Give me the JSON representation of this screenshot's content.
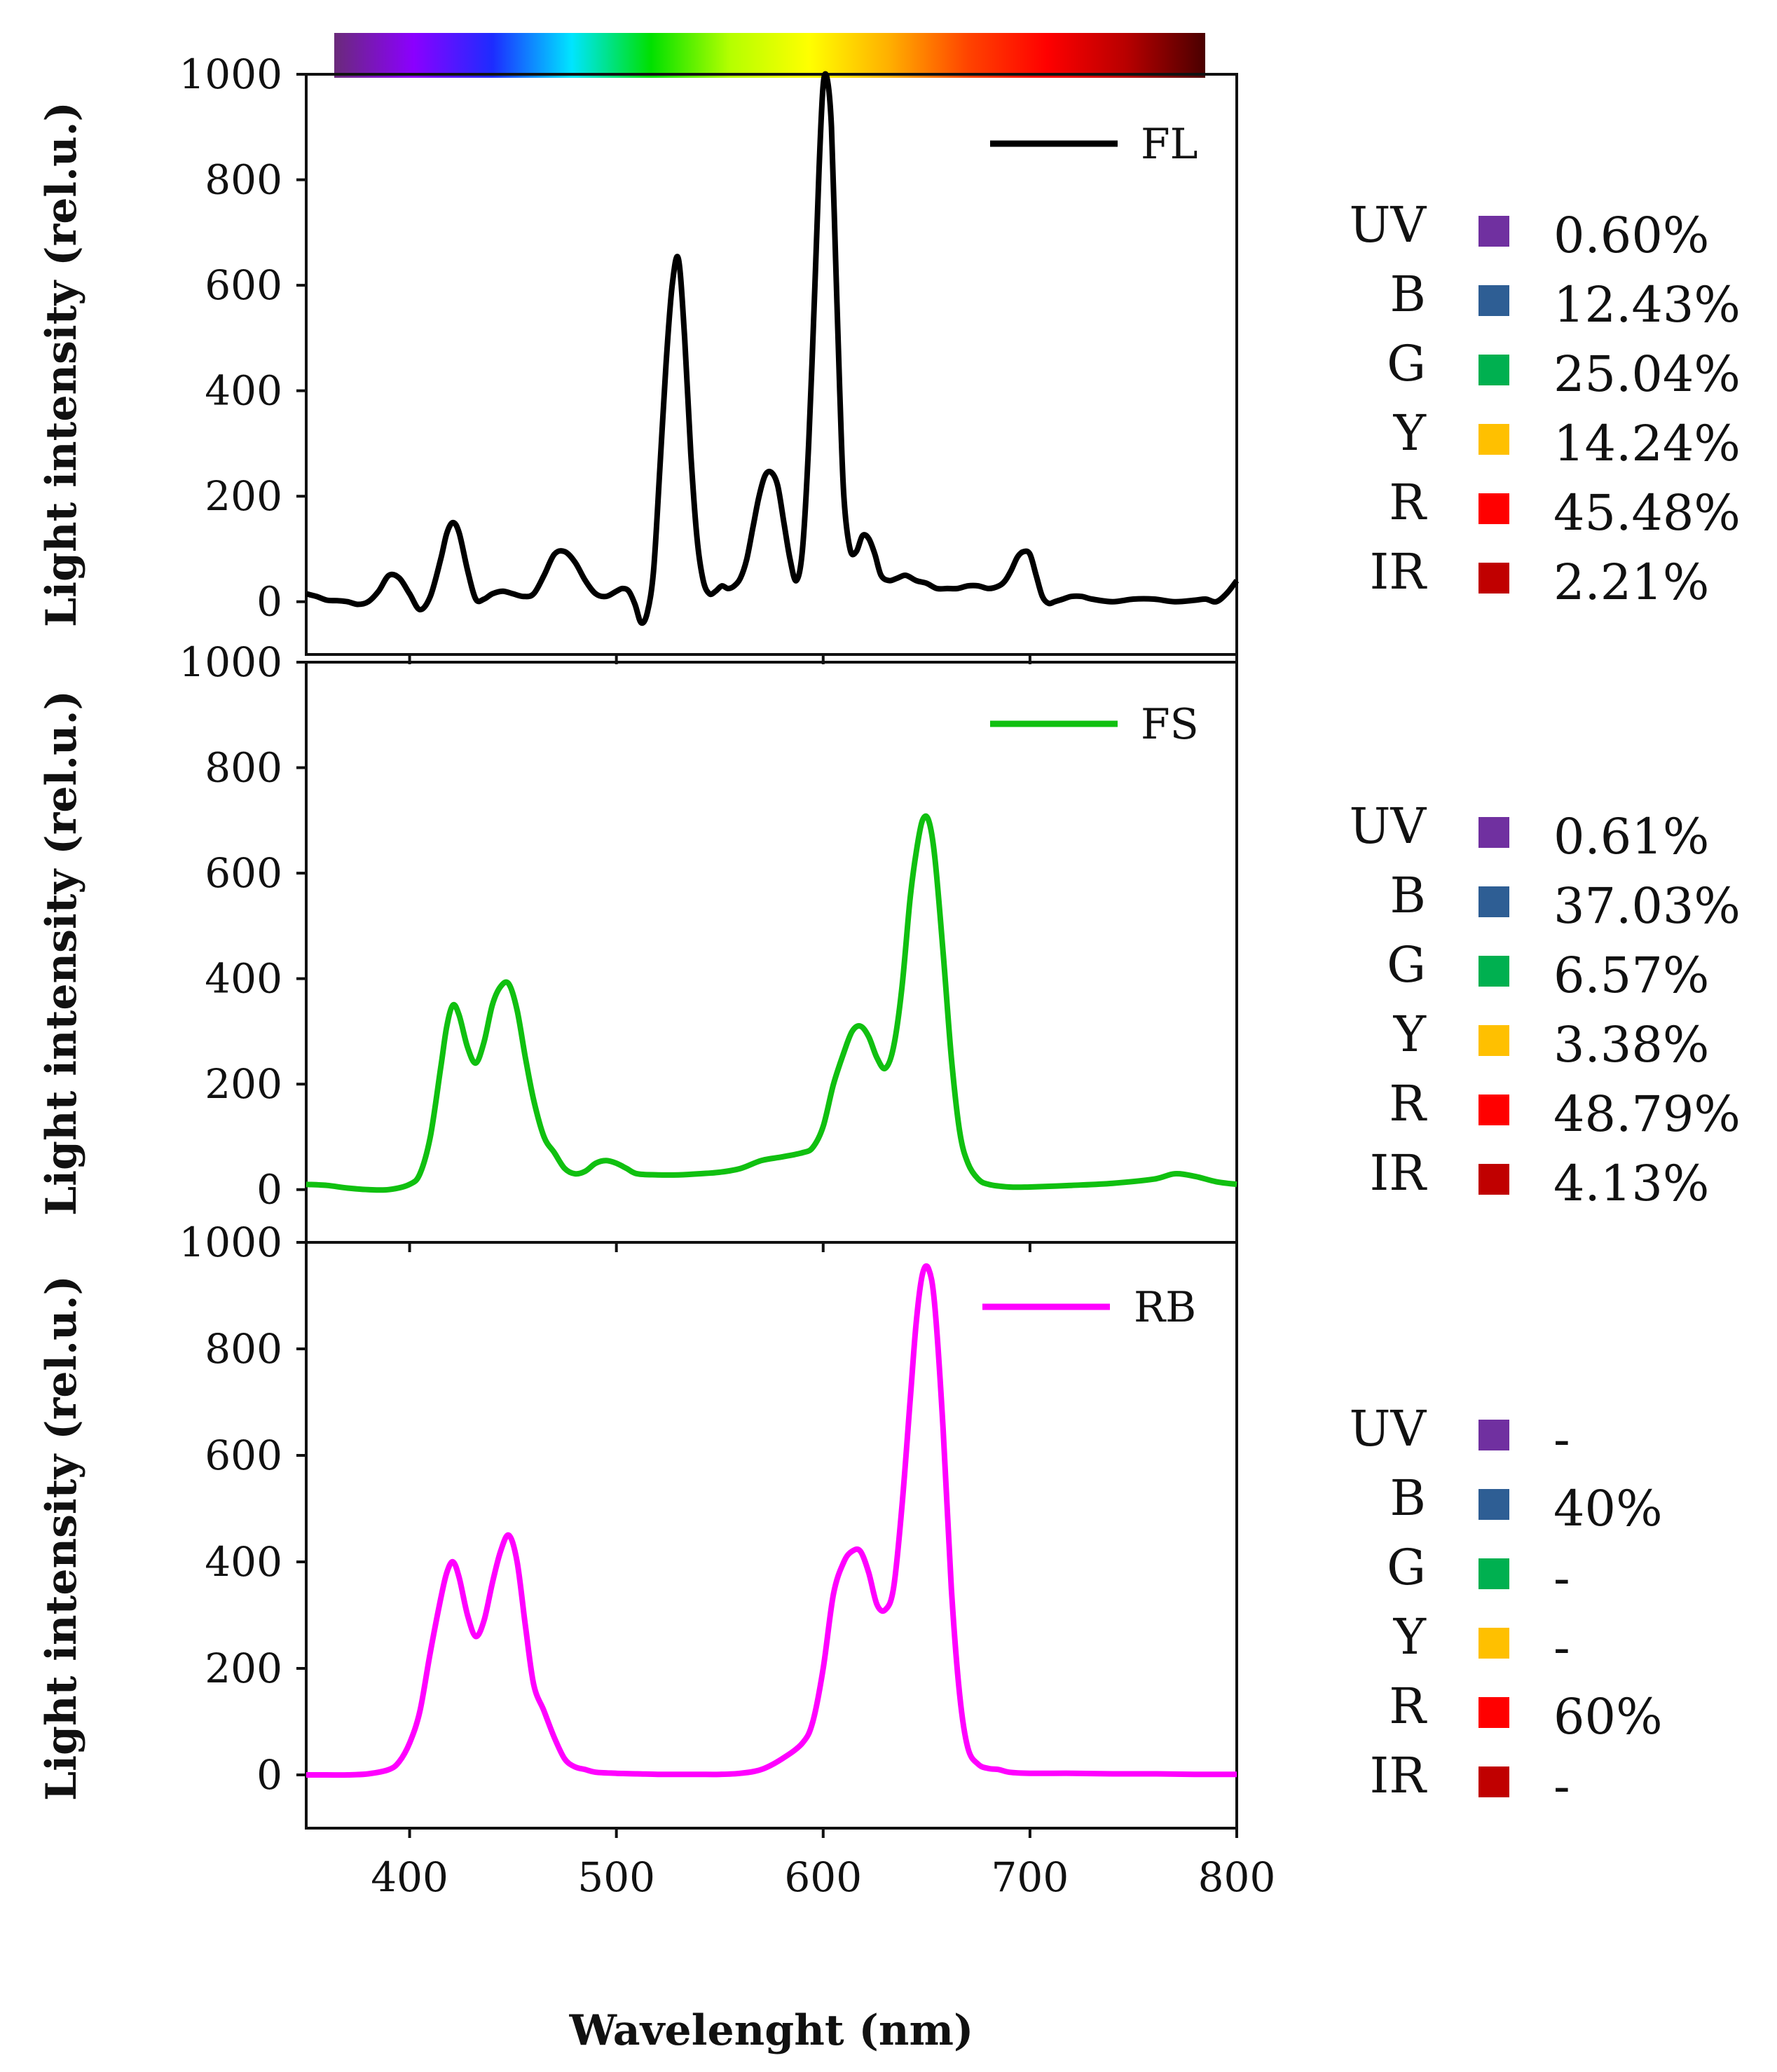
{
  "colors": {
    "axis": "#111111",
    "UV": "#7030a0",
    "B": "#2e5e94",
    "G": "#00b050",
    "Y": "#ffc000",
    "R": "#ff0000",
    "IR": "#c00000"
  },
  "spectrum_gradient": [
    "#6a2a7a",
    "#8b00ff",
    "#1d2cff",
    "#00e5ff",
    "#00e000",
    "#b5ff00",
    "#ffff00",
    "#ffb000",
    "#ff4400",
    "#ff0000",
    "#b80000",
    "#4a0000"
  ],
  "chart_data": [
    {
      "id": "fl",
      "type": "line",
      "series_name": "FL",
      "color": "#000000",
      "xlim": [
        350,
        800
      ],
      "ylim": [
        -100,
        1000
      ],
      "yticks": [
        "0",
        "200",
        "400",
        "600",
        "800",
        "1000"
      ],
      "xticks": [
        "400",
        "500",
        "600",
        "700",
        "800"
      ],
      "ylabel": "Light intensity (rel.u.)",
      "x": [
        350,
        355,
        360,
        365,
        370,
        375,
        380,
        385,
        390,
        395,
        400,
        405,
        410,
        415,
        418,
        421,
        424,
        428,
        432,
        436,
        440,
        445,
        450,
        455,
        460,
        465,
        470,
        475,
        480,
        485,
        490,
        495,
        500,
        503,
        506,
        509,
        512,
        515,
        518,
        521,
        524,
        527,
        530,
        533,
        536,
        539,
        542,
        545,
        548,
        551,
        554,
        557,
        560,
        563,
        566,
        569,
        572,
        575,
        578,
        581,
        584,
        587,
        590,
        593,
        596,
        598,
        600,
        602,
        604,
        606,
        608,
        610,
        613,
        616,
        619,
        622,
        625,
        628,
        632,
        636,
        640,
        645,
        650,
        655,
        660,
        665,
        670,
        675,
        680,
        685,
        688,
        691,
        694,
        697,
        700,
        703,
        706,
        709,
        712,
        716,
        720,
        725,
        730,
        740,
        750,
        760,
        770,
        780,
        785,
        790,
        795,
        800
      ],
      "y": [
        15,
        10,
        3,
        2,
        0,
        -5,
        0,
        20,
        50,
        45,
        15,
        -15,
        10,
        80,
        130,
        150,
        130,
        60,
        5,
        5,
        15,
        20,
        15,
        10,
        15,
        50,
        90,
        95,
        75,
        40,
        15,
        10,
        20,
        25,
        20,
        -5,
        -40,
        -20,
        60,
        250,
        450,
        600,
        650,
        500,
        280,
        120,
        40,
        15,
        20,
        30,
        25,
        30,
        45,
        80,
        140,
        200,
        240,
        245,
        220,
        150,
        80,
        40,
        100,
        300,
        600,
        820,
        980,
        990,
        900,
        650,
        400,
        200,
        100,
        95,
        125,
        120,
        90,
        50,
        40,
        45,
        50,
        40,
        35,
        25,
        25,
        25,
        30,
        30,
        25,
        30,
        40,
        60,
        85,
        95,
        90,
        50,
        10,
        -3,
        0,
        5,
        10,
        10,
        5,
        0,
        5,
        5,
        0,
        3,
        5,
        0,
        15,
        40
      ]
    },
    {
      "id": "fs",
      "type": "line",
      "series_name": "FS",
      "color": "#10c010",
      "xlim": [
        350,
        800
      ],
      "ylim": [
        -100,
        1000
      ],
      "yticks": [
        "0",
        "200",
        "400",
        "600",
        "800",
        "1000"
      ],
      "xticks": [
        "400",
        "500",
        "600",
        "700",
        "800"
      ],
      "ylabel": "Light intensity (rel.u.)",
      "x": [
        350,
        360,
        370,
        380,
        390,
        400,
        405,
        410,
        415,
        418,
        421,
        424,
        428,
        432,
        436,
        440,
        444,
        448,
        452,
        456,
        460,
        465,
        470,
        475,
        480,
        485,
        490,
        495,
        500,
        505,
        510,
        520,
        530,
        540,
        550,
        560,
        570,
        580,
        590,
        595,
        600,
        605,
        610,
        614,
        618,
        622,
        626,
        630,
        634,
        638,
        642,
        645,
        648,
        651,
        654,
        658,
        662,
        666,
        670,
        675,
        680,
        690,
        700,
        720,
        740,
        760,
        770,
        780,
        790,
        800
      ],
      "y": [
        10,
        8,
        3,
        0,
        0,
        10,
        30,
        100,
        230,
        310,
        350,
        330,
        270,
        240,
        280,
        350,
        385,
        390,
        340,
        250,
        170,
        100,
        70,
        40,
        30,
        35,
        50,
        55,
        50,
        40,
        30,
        28,
        28,
        30,
        33,
        40,
        55,
        62,
        70,
        80,
        120,
        200,
        260,
        300,
        310,
        290,
        250,
        230,
        270,
        380,
        550,
        640,
        700,
        700,
        630,
        450,
        250,
        110,
        50,
        20,
        10,
        5,
        5,
        8,
        12,
        20,
        30,
        25,
        15,
        10
      ]
    },
    {
      "id": "rb",
      "type": "line",
      "series_name": "RB",
      "color": "#ff00ff",
      "xlim": [
        350,
        800
      ],
      "ylim": [
        -100,
        1000
      ],
      "yticks": [
        "0",
        "200",
        "400",
        "600",
        "800",
        "1000"
      ],
      "xticks": [
        "400",
        "500",
        "600",
        "700",
        "800"
      ],
      "ylabel": "Light intensity (rel.u.)",
      "xlabel": "Wavelenght (nm)",
      "x": [
        350,
        360,
        370,
        380,
        390,
        395,
        400,
        405,
        410,
        415,
        418,
        421,
        424,
        428,
        432,
        436,
        440,
        444,
        448,
        452,
        456,
        460,
        465,
        470,
        475,
        480,
        485,
        490,
        500,
        510,
        520,
        530,
        540,
        550,
        560,
        570,
        580,
        590,
        595,
        600,
        605,
        610,
        614,
        618,
        622,
        626,
        630,
        634,
        638,
        642,
        645,
        648,
        651,
        654,
        658,
        662,
        666,
        670,
        675,
        680,
        685,
        690,
        700,
        720,
        740,
        760,
        780,
        800
      ],
      "y": [
        0,
        0,
        0,
        2,
        10,
        25,
        60,
        120,
        230,
        330,
        380,
        400,
        370,
        300,
        260,
        290,
        360,
        420,
        450,
        400,
        280,
        170,
        120,
        70,
        30,
        15,
        10,
        5,
        3,
        2,
        1,
        1,
        1,
        1,
        3,
        10,
        30,
        60,
        100,
        200,
        340,
        400,
        420,
        420,
        380,
        320,
        310,
        350,
        500,
        700,
        850,
        940,
        950,
        880,
        650,
        350,
        150,
        50,
        20,
        12,
        10,
        5,
        3,
        3,
        2,
        2,
        1,
        1
      ]
    }
  ],
  "spectral_tables": [
    {
      "id": "fl",
      "rows": [
        {
          "band": "UV",
          "value": "0.60%"
        },
        {
          "band": "B",
          "value": "12.43%"
        },
        {
          "band": "G",
          "value": "25.04%"
        },
        {
          "band": "Y",
          "value": "14.24%"
        },
        {
          "band": "R",
          "value": "45.48%"
        },
        {
          "band": "IR",
          "value": "2.21%"
        }
      ]
    },
    {
      "id": "fs",
      "rows": [
        {
          "band": "UV",
          "value": "0.61%"
        },
        {
          "band": "B",
          "value": "37.03%"
        },
        {
          "band": "G",
          "value": "6.57%"
        },
        {
          "band": "Y",
          "value": "3.38%"
        },
        {
          "band": "R",
          "value": "48.79%"
        },
        {
          "band": "IR",
          "value": "4.13%"
        }
      ]
    },
    {
      "id": "rb",
      "rows": [
        {
          "band": "UV",
          "value": "-"
        },
        {
          "band": "B",
          "value": "40%"
        },
        {
          "band": "G",
          "value": "-"
        },
        {
          "band": "Y",
          "value": "-"
        },
        {
          "band": "R",
          "value": "60%"
        },
        {
          "band": "IR",
          "value": "-"
        }
      ]
    }
  ]
}
